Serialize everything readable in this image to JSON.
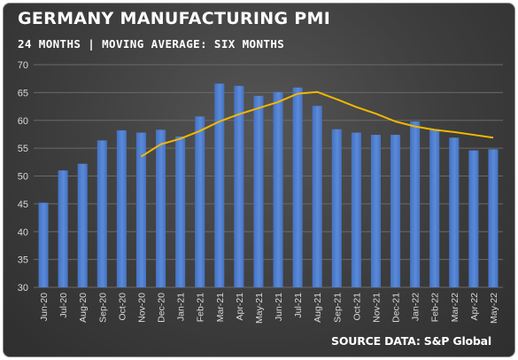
{
  "header": {
    "title": "GERMANY MANUFACTURING PMI",
    "subtitle": "24 MONTHS | MOVING AVERAGE: SIX MONTHS"
  },
  "footer": {
    "source": "SOURCE DATA: S&P Global"
  },
  "colors": {
    "bar": "#4472c4",
    "bar_highlight": "#5b8ad8",
    "moving_average": "#f2b800",
    "gridline": "#6a6a6a",
    "axis_text": "#d9d9d9"
  },
  "chart_data": {
    "type": "bar",
    "title": "GERMANY MANUFACTURING PMI",
    "subtitle": "24 MONTHS | MOVING AVERAGE: SIX MONTHS",
    "categories": [
      "Jun-20",
      "Jul-20",
      "Aug-20",
      "Sep-20",
      "Oct-20",
      "Nov-20",
      "Dec-20",
      "Jan-21",
      "Feb-21",
      "Mar-21",
      "Apr-21",
      "May-21",
      "Jun-21",
      "Jul-21",
      "Aug-21",
      "Sep-21",
      "Oct-21",
      "Nov-21",
      "Dec-21",
      "Jan-22",
      "Feb-22",
      "Mar-22",
      "Apr-22",
      "May-22"
    ],
    "series": [
      {
        "type": "bar",
        "values": [
          45.2,
          51.0,
          52.2,
          56.4,
          58.2,
          57.8,
          58.3,
          57.1,
          60.7,
          66.6,
          66.2,
          64.4,
          65.1,
          65.9,
          62.6,
          58.4,
          57.8,
          57.4,
          57.4,
          59.8,
          58.4,
          56.9,
          54.6,
          54.8
        ]
      },
      {
        "type": "line",
        "values": [
          null,
          null,
          null,
          null,
          null,
          53.5,
          55.7,
          56.7,
          58.1,
          59.8,
          61.1,
          62.2,
          63.3,
          64.8,
          65.1,
          63.8,
          62.4,
          61.2,
          59.8,
          58.9,
          58.3,
          57.9,
          57.4,
          56.9
        ]
      }
    ],
    "ylim": [
      30,
      70
    ],
    "yticks": [
      30,
      35,
      40,
      45,
      50,
      55,
      60,
      65,
      70
    ],
    "grid": true,
    "legend": "none",
    "annotation": "SOURCE DATA: S&P Global"
  }
}
